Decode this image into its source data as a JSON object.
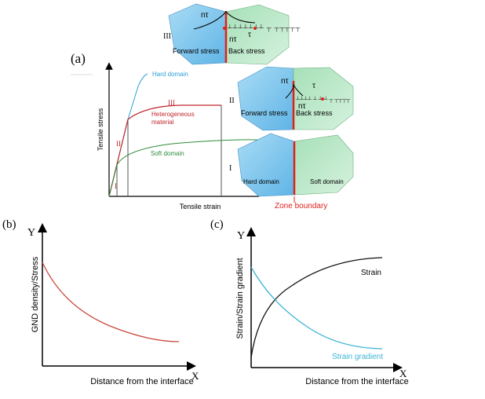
{
  "panel_a": {
    "label": "(a)",
    "y_axis": "Tensile stress",
    "x_axis": "Tensile strain",
    "hard_domain": "Hard domain",
    "heterogeneous_1": "Heterogeneous",
    "heterogeneous_2": "material",
    "soft_domain": "Soft domain",
    "stage_1": "I",
    "stage_2": "II",
    "stage_3": "III",
    "grain_hard": "Hard domain",
    "grain_soft": "Soft domain",
    "zone_boundary": "Zone boundary",
    "forward_stress": "Forward stress",
    "back_stress": "Back stress",
    "n_tau": "nτ",
    "tau": "τ",
    "sub_a": "a",
    "colors": {
      "hard": "#2a9fd8",
      "hetero": "#c0282d",
      "soft": "#2e8b3a",
      "boundary": "#e0201b",
      "blue_grain": "#8fcdf0",
      "green_grain": "#c4ebd0"
    }
  },
  "panel_b": {
    "label": "(b)",
    "y_letter": "Y",
    "x_letter": "X",
    "y_axis": "GND density/Stress",
    "x_axis": "Distance from the interface"
  },
  "panel_c": {
    "label": "(c)",
    "y_letter": "Y",
    "x_letter": "X",
    "y_axis": "Strain/Strain gradient",
    "x_axis": "Distance from the interface",
    "strain": "Strain",
    "strain_gradient": "Strain gradient"
  }
}
